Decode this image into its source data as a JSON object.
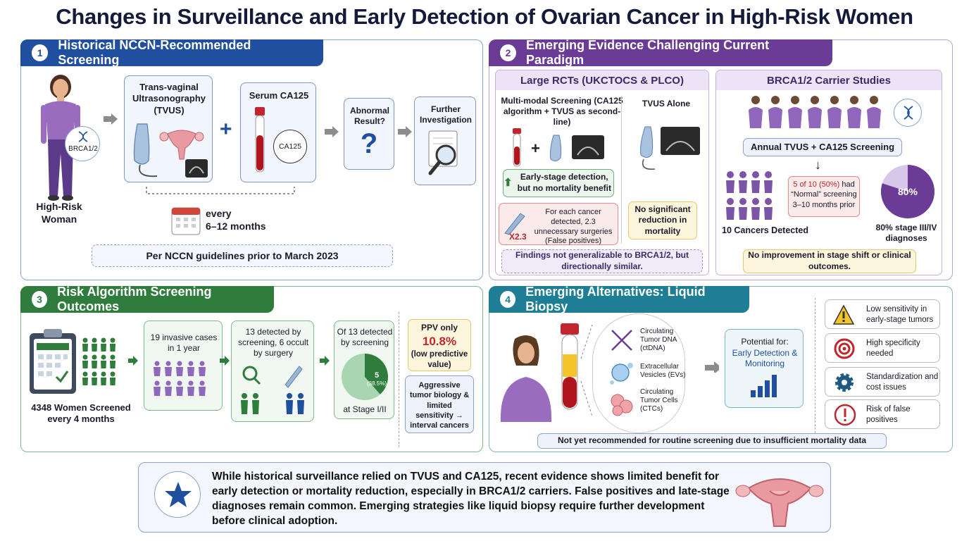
{
  "title": "Changes in Surveillance and Early Detection of Ovarian Cancer in High-Risk Women",
  "colors": {
    "blue": "#1f4f9e",
    "purple": "#6a3c95",
    "green": "#2f7c3c",
    "teal": "#1d7e95",
    "red": "#c0262e"
  },
  "panel1": {
    "num": "1",
    "header": "Historical NCCN-Recommended Screening",
    "woman_label": "High-Risk Woman",
    "gene_badge": "BRCA1/2",
    "tvus_label": "Trans-vaginal Ultrasonography (TVUS)",
    "ca125_label": "Serum CA125",
    "ca125_tube_label": "CA125",
    "abnormal_label": "Abnormal Result?",
    "abnormal_symbol": "?",
    "further_label": "Further Investigation",
    "every_label": "every",
    "interval_label": "6–12 months",
    "guideline_note": "Per NCCN guidelines prior to March 2023",
    "icons": [
      "woman-icon",
      "dna-icon",
      "ultrasound-probe-icon",
      "uterus-icon",
      "test-tube-icon",
      "question-icon",
      "magnifier-icon",
      "calendar-icon"
    ]
  },
  "panel2": {
    "num": "2",
    "header": "Emerging Evidence Challenging Current Paradigm",
    "rct": {
      "title": "Large RCTs (UKCTOCS & PLCO)",
      "multimodal_title": "Multi-modal Screening (CA125 algorithm + TVUS as second-line)",
      "tvus_alone_title": "TVUS Alone",
      "early_stage_note": "Early-stage detection, but no mortality benefit",
      "surgery_note": "For each cancer detected, 2.3 unnecessary surgeries (False positives)",
      "multiplier": "X2.3",
      "no_reduction_note": "No significant reduction in mortality",
      "generalizable_note": "Findings not generalizable to BRCA1/2, but directionally similar."
    },
    "brca": {
      "title": "BRCA1/2 Carrier Studies",
      "annual_label": "Annual TVUS + CA125 Screening",
      "cancers_label": "10 Cancers Detected",
      "normal_note_highlight": "5 of 10 (50%)",
      "normal_note_rest": " had “Normal” screening 3–10 months prior",
      "stage_percent_label": "80%",
      "stage_percent": 80,
      "stage_caption": "80% stage III/IV diagnoses",
      "outcome_note": "No improvement in stage shift or clinical outcomes."
    }
  },
  "panel3": {
    "num": "3",
    "header": "Risk Algorithm Screening Outcomes",
    "screened_label": "4348 Women Screened every 4 months",
    "invasive_label": "19 invasive cases in 1 year",
    "detected_label": "13 detected by screening, 6 occult by surgery",
    "of13_label": "Of 13 detected by screening",
    "pie_value_label": "5",
    "pie_pct_label": "(38.5%)",
    "pie_fraction": 0.385,
    "stage_label": "at Stage I/II",
    "ppv_label": "PPV only",
    "ppv_value": "10.8%",
    "ppv_note": "(low predictive value)",
    "aggressive_note": "Aggressive tumor biology & limited sensitivity → interval cancers"
  },
  "panel4": {
    "num": "4",
    "header": "Emerging Alternatives: Liquid Biopsy",
    "analytes": [
      {
        "label": "Circulating Tumor DNA (ctDNA)",
        "icon": "dna-helix-icon"
      },
      {
        "label": "Extracellular Vesicles (EVs)",
        "icon": "vesicle-icon"
      },
      {
        "label": "Circulating Tumor Cells (CTCs)",
        "icon": "cell-cluster-icon"
      }
    ],
    "potential_label": "Potential for:",
    "potential_value": "Early Detection & Monitoring",
    "challenges": [
      {
        "label": "Low sensitivity in early-stage tumors",
        "icon": "warning-icon"
      },
      {
        "label": "High specificity needed",
        "icon": "target-icon"
      },
      {
        "label": "Standardization and cost issues",
        "icon": "gear-icon"
      },
      {
        "label": "Risk of false positives",
        "icon": "alert-circle-icon"
      }
    ],
    "bottom_note": "Not yet recommended for routine screening due to insufficient mortality data"
  },
  "summary": {
    "text": "While historical surveillance relied on TVUS and CA125, recent evidence shows limited benefit for early detection or mortality reduction, especially in BRCA1/2 carriers. False positives and late-stage diagnoses remain common. Emerging strategies like liquid biopsy require further development before clinical adoption.",
    "icon": "star-icon"
  }
}
